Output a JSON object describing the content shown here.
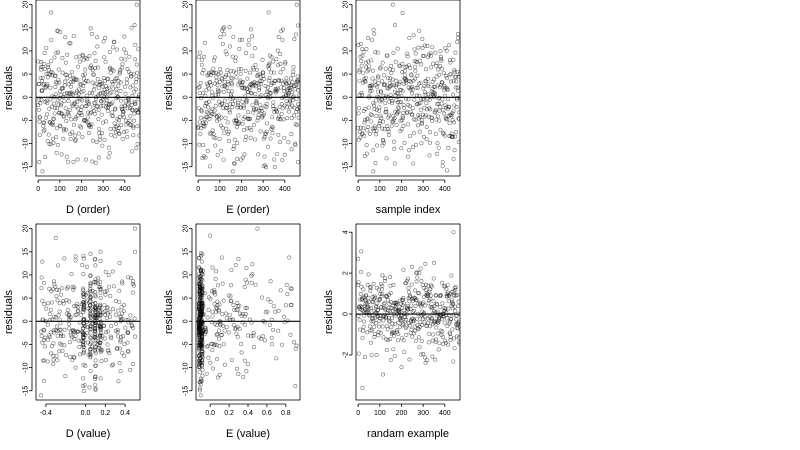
{
  "chart_data": [
    {
      "type": "scatter",
      "xlabel": "D (order)",
      "ylabel": "residuals",
      "xlim": [
        -10,
        470
      ],
      "ylim": [
        -17,
        21
      ],
      "xticks": [
        0,
        100,
        200,
        300,
        400
      ],
      "yticks": [
        -15,
        -10,
        -5,
        0,
        5,
        10,
        15,
        20
      ],
      "hline": 0,
      "n_points": 470,
      "x_mode": "index",
      "y_sd": 6.0,
      "seed": 11,
      "y_extremes": [
        [
          60,
          18.3
        ],
        [
          455,
          20.0
        ],
        [
          445,
          15.6
        ],
        [
          20,
          -16.0
        ],
        [
          5,
          -14.0
        ],
        [
          90,
          14.4
        ],
        [
          280,
          -13.0
        ],
        [
          330,
          -12.0
        ]
      ]
    },
    {
      "type": "scatter",
      "xlabel": "E (order)",
      "ylabel": "residuals",
      "xlim": [
        -10,
        470
      ],
      "ylim": [
        -17,
        21
      ],
      "xticks": [
        0,
        100,
        200,
        300,
        400
      ],
      "yticks": [
        -15,
        -10,
        -5,
        0,
        5,
        10,
        15,
        20
      ],
      "hline": 0,
      "n_points": 470,
      "x_mode": "index",
      "y_sd": 6.0,
      "seed": 23,
      "y_extremes": [
        [
          455,
          20.0
        ],
        [
          325,
          18.3
        ],
        [
          460,
          15.5
        ],
        [
          110,
          14.4
        ],
        [
          120,
          13.6
        ],
        [
          160,
          -16.0
        ],
        [
          460,
          -14.0
        ],
        [
          180,
          -13.3
        ]
      ]
    },
    {
      "type": "scatter",
      "xlabel": "sample index",
      "ylabel": "residuals",
      "xlim": [
        -10,
        470
      ],
      "ylim": [
        -17,
        21
      ],
      "xticks": [
        0,
        100,
        200,
        300,
        400
      ],
      "yticks": [
        -15,
        -10,
        -5,
        0,
        5,
        10,
        15,
        20
      ],
      "hline": 0,
      "n_points": 470,
      "x_mode": "index",
      "y_sd": 6.0,
      "seed": 37,
      "y_extremes": [
        [
          160,
          20.0
        ],
        [
          205,
          18.2
        ],
        [
          170,
          15.6
        ],
        [
          410,
          -15.8
        ],
        [
          440,
          -13.3
        ],
        [
          70,
          -16.0
        ],
        [
          380,
          10.0
        ]
      ]
    },
    {
      "type": "scatter",
      "xlabel": "D (value)",
      "ylabel": "residuals",
      "xlim": [
        -0.5,
        0.55
      ],
      "xticks": [
        -0.4,
        0.0,
        0.2,
        0.4
      ],
      "xticklabels": [
        "-0.4",
        "0.0",
        "0.2",
        "0.4"
      ],
      "ylim": [
        -17,
        21
      ],
      "yticks": [
        -15,
        -10,
        -5,
        0,
        5,
        10,
        15,
        20
      ],
      "hline": 0,
      "n_points": 470,
      "x_mode": "uniform",
      "x_range": [
        -0.45,
        0.5
      ],
      "y_sd": 6.0,
      "seed": 53,
      "x_columns": [
        -0.02,
        0.05,
        0.1,
        0.15
      ],
      "y_extremes": [
        [
          -0.3,
          18.0
        ],
        [
          0.5,
          20.0
        ],
        [
          0.5,
          15.0
        ],
        [
          -0.45,
          -16.0
        ],
        [
          0.1,
          -12.0
        ],
        [
          -0.1,
          14.0
        ]
      ]
    },
    {
      "type": "scatter",
      "xlabel": "E (value)",
      "ylabel": "residuals",
      "xlim": [
        -0.15,
        0.95
      ],
      "xticks": [
        0.0,
        0.2,
        0.4,
        0.6,
        0.8
      ],
      "xticklabels": [
        "0.0",
        "0.2",
        "0.4",
        "0.6",
        "0.8"
      ],
      "ylim": [
        -17,
        21
      ],
      "yticks": [
        -15,
        -10,
        -5,
        0,
        5,
        10,
        15,
        20
      ],
      "hline": 0,
      "n_points": 470,
      "x_mode": "skewed",
      "x_range": [
        -0.12,
        0.92
      ],
      "y_sd": 6.0,
      "seed": 71,
      "y_extremes": [
        [
          0.5,
          20.0
        ],
        [
          0.0,
          18.5
        ],
        [
          0.9,
          -14.0
        ],
        [
          -0.1,
          -16.0
        ],
        [
          0.35,
          -12.0
        ],
        [
          0.7,
          -8.0
        ]
      ]
    },
    {
      "type": "scatter",
      "xlabel": "randam example",
      "ylabel": "residuals",
      "xlim": [
        -10,
        470
      ],
      "ylim": [
        -4.2,
        4.4
      ],
      "xticks": [
        0,
        100,
        200,
        300,
        400
      ],
      "yticks": [
        -2,
        0,
        2,
        4
      ],
      "hline": 0,
      "n_points": 470,
      "x_mode": "index",
      "y_sd": 1.0,
      "seed": 97,
      "y_extremes": [
        [
          440,
          4.0
        ],
        [
          0,
          2.7
        ],
        [
          20,
          -3.6
        ],
        [
          200,
          -2.6
        ],
        [
          350,
          2.5
        ]
      ]
    }
  ]
}
